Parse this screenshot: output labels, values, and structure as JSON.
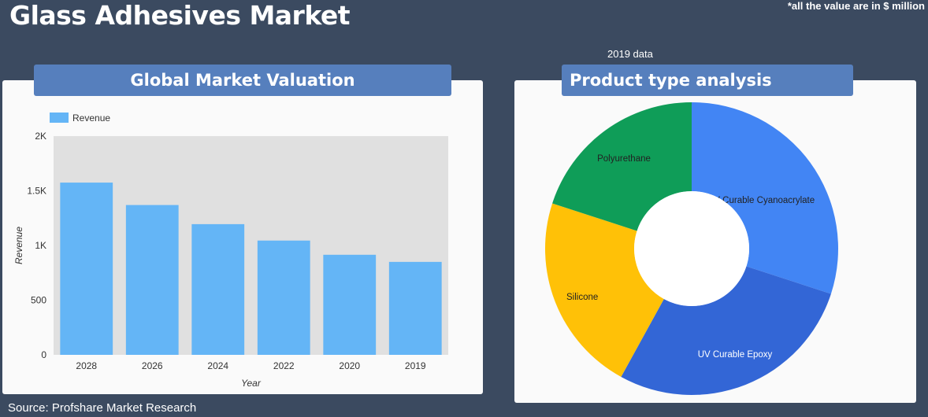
{
  "page": {
    "title": "Glass Adhesives Market",
    "note": "*all the value are in $ million",
    "source": "Source: Profshare Market Research"
  },
  "left_panel": {
    "banner": "Global Market Valuation"
  },
  "right_panel": {
    "banner": "Product type analysis",
    "subtitle": "2019 data"
  },
  "colors": {
    "background": "#3b4a60",
    "banner": "#567fbd",
    "bar": "#64b5f6",
    "plot_bg": "#e0e0e0"
  },
  "chart_data": [
    {
      "type": "bar",
      "categories": [
        "2028",
        "2026",
        "2024",
        "2022",
        "2020",
        "2019"
      ],
      "series": [
        {
          "name": "Revenue",
          "values": [
            1575,
            1370,
            1195,
            1045,
            915,
            850
          ],
          "color": "#64b5f6"
        }
      ],
      "xlabel": "Year",
      "ylabel": "Revenue",
      "ylim": [
        0,
        2000
      ],
      "yticks": [
        0,
        500,
        1000,
        1500,
        2000
      ],
      "ytick_labels": [
        "0",
        "500",
        "1K",
        "1.5K",
        "2K"
      ],
      "legend": "top-left",
      "grid": false
    },
    {
      "type": "pie",
      "donut": true,
      "slices": [
        {
          "label": "UV Curable Cyanoacrylate",
          "value": 30,
          "color": "#4285f4"
        },
        {
          "label": "UV Curable Epoxy",
          "value": 28,
          "color": "#3366d6"
        },
        {
          "label": "Silicone",
          "value": 22,
          "color": "#ffc107"
        },
        {
          "label": "Polyurethane",
          "value": 20,
          "color": "#0f9d58"
        }
      ]
    }
  ]
}
